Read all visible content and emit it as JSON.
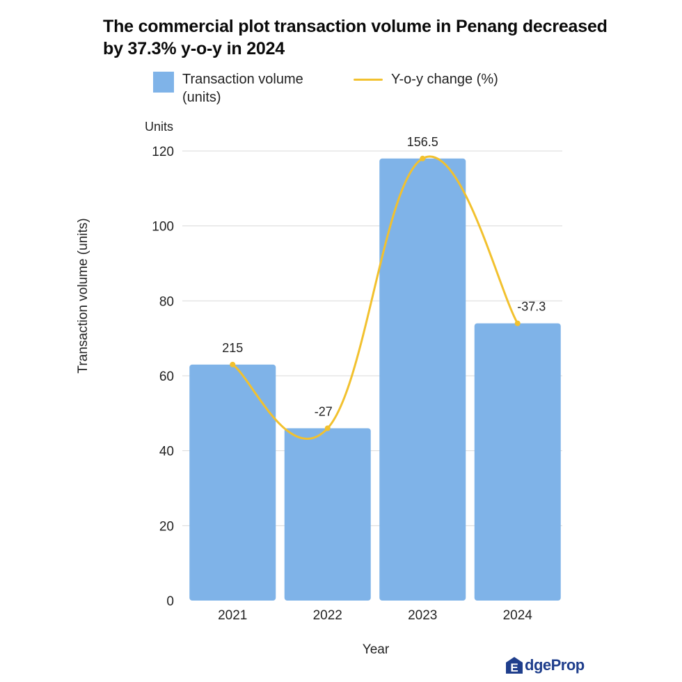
{
  "title": "The  commercial plot transaction volume in Penang decreased by  37.3% y-o-y in 2024",
  "legend": {
    "bar_label": "Transaction volume (units)",
    "line_label": "Y-o-y change (%)"
  },
  "colors": {
    "bar": "#7fb3e8",
    "line": "#f2c12e",
    "grid": "#d9d9d9"
  },
  "brand": {
    "logo_text": "dgeProp",
    "logo_letter": "E"
  },
  "chart_data": {
    "type": "bar",
    "title": "The  commercial plot transaction volume in Penang decreased by  37.3% y-o-y in 2024",
    "xlabel": "Year",
    "ylabel": "Transaction volume (units)",
    "yunit_label": "Units",
    "ylim": [
      0,
      120
    ],
    "yticks": [
      0,
      20,
      40,
      60,
      80,
      100,
      120
    ],
    "grid": true,
    "legend_position": "top",
    "categories": [
      "2021",
      "2022",
      "2023",
      "2024"
    ],
    "series": [
      {
        "name": "Transaction volume (units)",
        "type": "bar",
        "values": [
          63,
          46,
          118,
          74
        ]
      },
      {
        "name": "Y-o-y change (%)",
        "type": "line",
        "values": [
          215,
          -27,
          156.5,
          -37.3
        ],
        "labels": [
          "215",
          "-27",
          "156.5",
          "-37.3"
        ]
      }
    ]
  }
}
